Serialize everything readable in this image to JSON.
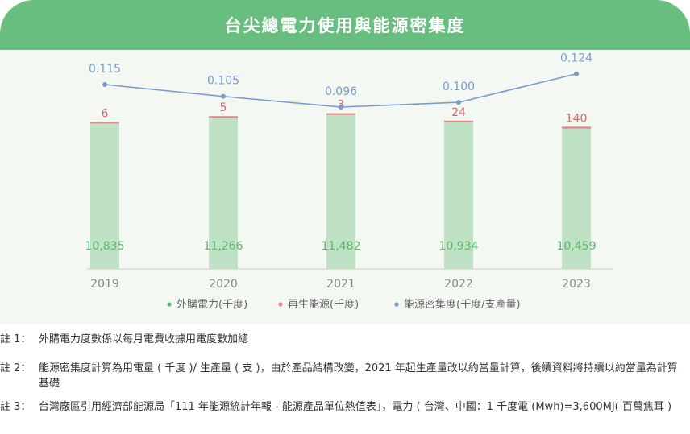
{
  "title": "台尖總電力使用與能源密集度",
  "colors": {
    "header_bg": "#68be7e",
    "panel_bg": "#f4f8f3",
    "purchased": "#bfe2c4",
    "purchased_label": "#58b86a",
    "renewable": "#e58585",
    "intensity": "#7b9bd0",
    "axis_text": "#888888"
  },
  "chart_data": {
    "type": "bar",
    "stacked": true,
    "categories": [
      "2019",
      "2020",
      "2021",
      "2022",
      "2023"
    ],
    "series": [
      {
        "name": "外購電力(千度)",
        "values": [
          10835,
          11266,
          11482,
          10934,
          10459
        ],
        "labels": [
          "10,835",
          "11,266",
          "11,482",
          "10,934",
          "10,459"
        ]
      },
      {
        "name": "再生能源(千度)",
        "values": [
          6,
          5,
          3,
          24,
          140
        ],
        "labels": [
          "6",
          "5",
          "3",
          "24",
          "140"
        ]
      }
    ],
    "line_series": {
      "name": "能源密集度(千度/支產量)",
      "values": [
        0.115,
        0.105,
        0.096,
        0.1,
        0.124
      ],
      "labels": [
        "0.115",
        "0.105",
        "0.096",
        "0.100",
        "0.124"
      ]
    },
    "legend_position": "bottom",
    "grid": false
  },
  "notes": [
    {
      "label": "註 1：",
      "text": "外購電力度數係以每月電費收據用電度數加總"
    },
    {
      "label": "註 2：",
      "text": "能源密集度計算為用電量 ( 千度 )/ 生產量 ( 支 )，由於產品結構改變，2021 年起生產量改以約當量計算，後續資料將持續以約當量為計算基礎"
    },
    {
      "label": "註 3：",
      "text": "台灣廠區引用經濟部能源局「111 年能源統計年報 - 能源產品單位熱值表」，電力 ( 台灣、中國：1 千度電 (Mwh)=3,600MJ( 百萬焦耳 )"
    }
  ]
}
